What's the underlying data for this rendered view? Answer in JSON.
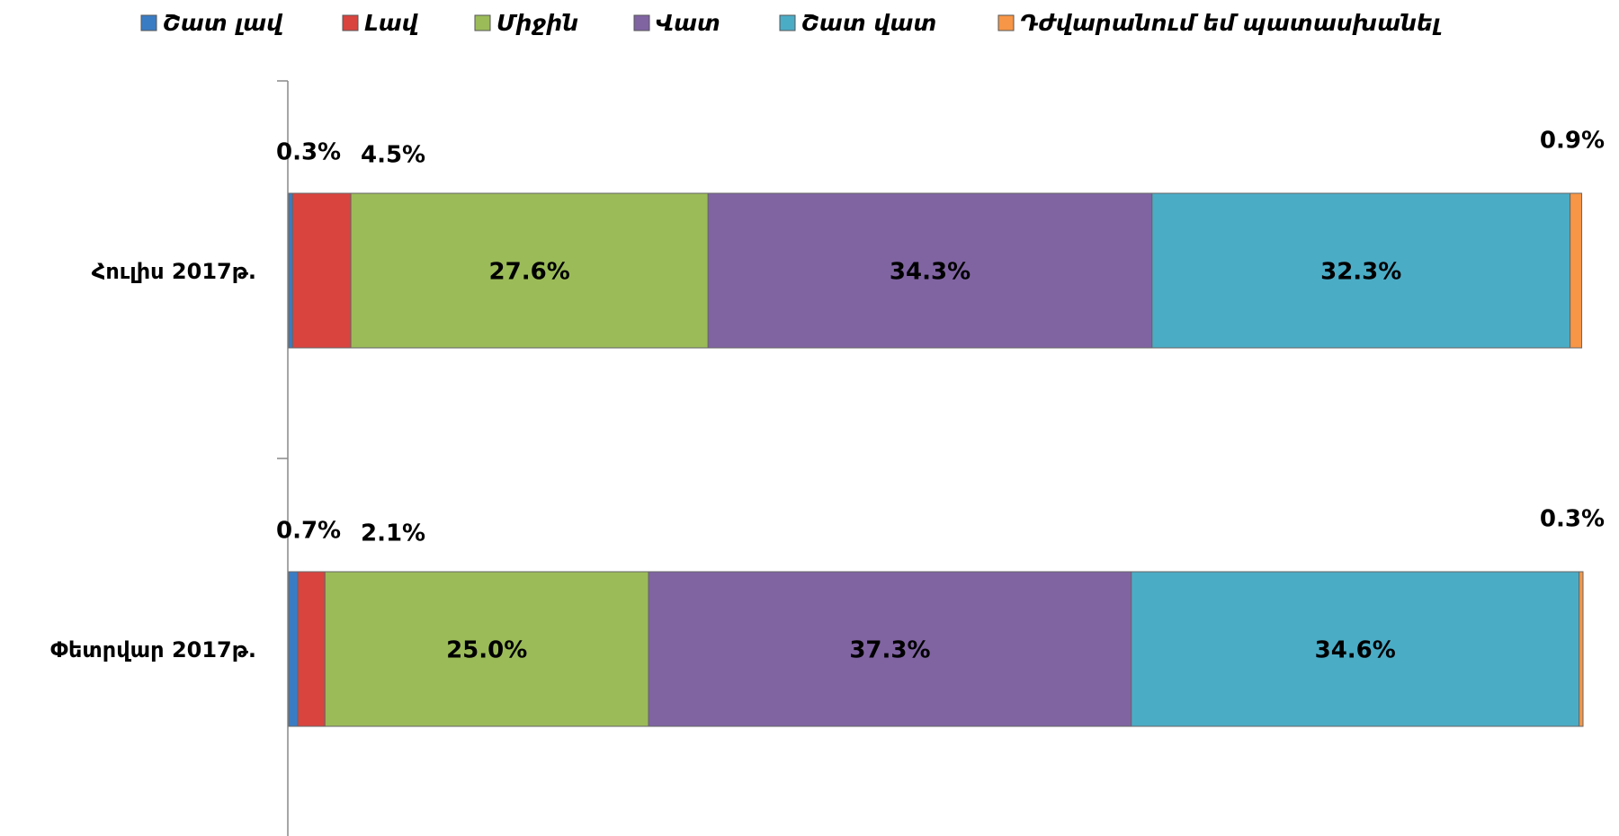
{
  "chart_data": {
    "type": "stacked-bar-horizontal",
    "categories": [
      "Հուլիս 2017թ.",
      "Փետրվար 2017թ."
    ],
    "xlim": [
      0,
      100
    ],
    "series": [
      {
        "name": "Շատ լավ",
        "color": "#3a7cc4",
        "values": [
          0.3,
          0.7
        ],
        "value_labels": [
          "0.3%",
          "0.7%"
        ]
      },
      {
        "name": "Լավ",
        "color": "#d9443f",
        "values": [
          4.5,
          2.1
        ],
        "value_labels": [
          "4.5%",
          "2.1%"
        ]
      },
      {
        "name": "Միջին",
        "color": "#9bbb59",
        "values": [
          27.6,
          25.0
        ],
        "value_labels": [
          "27.6%",
          "25.0%"
        ]
      },
      {
        "name": "Վատ",
        "color": "#8064a2",
        "values": [
          34.3,
          37.3
        ],
        "value_labels": [
          "34.3%",
          "37.3%"
        ]
      },
      {
        "name": "Շատ վատ",
        "color": "#4bacc6",
        "values": [
          32.3,
          34.6
        ],
        "value_labels": [
          "32.3%",
          "34.6%"
        ]
      },
      {
        "name": "Դժվարանում եմ պատասխանել",
        "color": "#f79646",
        "values": [
          0.9,
          0.3
        ],
        "value_labels": [
          "0.9%",
          "0.3%"
        ]
      }
    ],
    "legend": "top"
  }
}
